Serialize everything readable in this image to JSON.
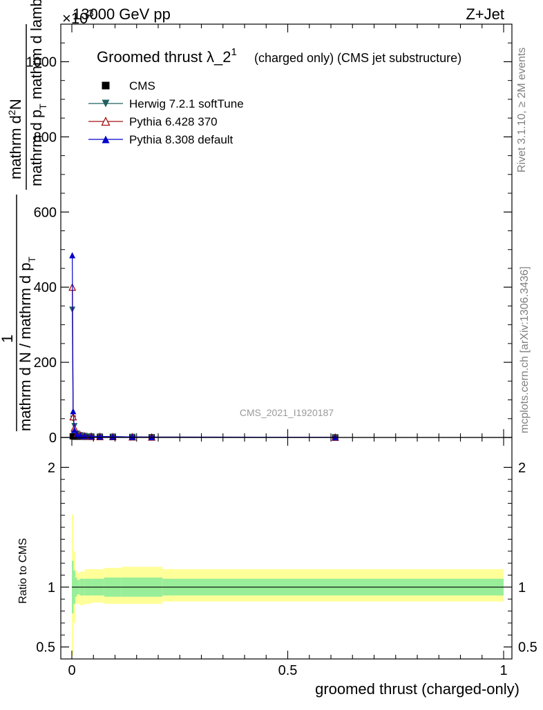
{
  "header": {
    "energy": "13000 GeV pp",
    "process": "Z+Jet",
    "exponent": "×10",
    "exponent_power": "3"
  },
  "side_text": {
    "rivet": "Rivet 3.1.10, ≥ 2M events",
    "mcplots": "mcplots.cern.ch [arXiv:1306.3436]"
  },
  "watermark": "CMS_2021_I1920187",
  "plot_title": {
    "main": "Groomed thrust λ_2",
    "sup": "1",
    "sub": "(charged only) (CMS jet substructure)"
  },
  "ylabel": {
    "numerator": "mathrm d²N",
    "numerator_parts": [
      "mathrm d",
      "N"
    ],
    "denominator_line1": "mathrm d p_T mathrm d lambda",
    "denominator_line1_parts": [
      "mathrm d p",
      "T",
      " mathrm d lambda"
    ],
    "lhs_one": "1",
    "lhs_denominator": "mathrm d N / mathrm d p_T",
    "lhs_denominator_parts": [
      "mathrm d N / mathrm d p",
      "T"
    ]
  },
  "xlabel": "groomed thrust (charged-only)",
  "ratio_ylabel": "Ratio to CMS",
  "legend": [
    {
      "name": "CMS",
      "marker": "square",
      "color": "#000000"
    },
    {
      "name": "Herwig 7.2.1 softTune",
      "marker": "triangle-down",
      "color": "#1f5f5f"
    },
    {
      "name": "Pythia 6.428 370",
      "marker": "triangle-open",
      "color": "#a01010"
    },
    {
      "name": "Pythia 8.308 default",
      "marker": "triangle-up",
      "color": "#0000cc"
    }
  ],
  "chart_data": {
    "type": "line",
    "x_range": [
      0,
      1
    ],
    "main_y_range": [
      0,
      1100
    ],
    "main_y_scale_note": "×10³",
    "main_y_ticks": [
      0,
      200,
      400,
      600,
      800,
      1000
    ],
    "main_y_ticklabels": [
      "0",
      "200",
      "400",
      "600",
      "800",
      "1000"
    ],
    "x_ticks": [
      0,
      0.5,
      1
    ],
    "x_ticklabels": [
      "0",
      "0.5",
      "1"
    ],
    "ratio_y_range": [
      0.4,
      2.25
    ],
    "ratio_y_ticks": [
      0.5,
      1,
      2
    ],
    "ratio_y_ticklabels": [
      "0.5",
      "1",
      "2"
    ],
    "series": [
      {
        "name": "CMS",
        "x": [
          0.002,
          0.006,
          0.012,
          0.02,
          0.03,
          0.045,
          0.065,
          0.095,
          0.14,
          0.185,
          0.61
        ],
        "y": [
          3,
          2,
          2.5,
          2,
          1.8,
          1.5,
          1.2,
          1.0,
          0.8,
          0.5,
          0.3
        ]
      },
      {
        "name": "Herwig 7.2.1 softTune",
        "x": [
          0.001,
          0.003,
          0.006,
          0.012,
          0.02,
          0.03,
          0.045,
          0.065,
          0.095,
          0.14,
          0.185,
          0.61
        ],
        "y": [
          340,
          50,
          30,
          10,
          6,
          4,
          3,
          2.5,
          2,
          1.5,
          1,
          0.5
        ]
      },
      {
        "name": "Pythia 6.428 370",
        "x": [
          0.001,
          0.003,
          0.006,
          0.012,
          0.02,
          0.03,
          0.045,
          0.065,
          0.095,
          0.14,
          0.185,
          0.61
        ],
        "y": [
          400,
          55,
          25,
          9,
          6,
          4,
          3,
          2.5,
          2,
          1.5,
          1,
          0.5
        ]
      },
      {
        "name": "Pythia 8.308 default",
        "x": [
          0.001,
          0.003,
          0.006,
          0.012,
          0.02,
          0.03,
          0.045,
          0.065,
          0.095,
          0.14,
          0.185,
          0.61
        ],
        "y": [
          485,
          70,
          20,
          8,
          5,
          4,
          3,
          2.5,
          2,
          1.5,
          1,
          0.5
        ]
      }
    ],
    "ratio_bands": {
      "x_edges": [
        0.0,
        0.004,
        0.008,
        0.012,
        0.018,
        0.03,
        0.045,
        0.075,
        0.115,
        0.21,
        1.0
      ],
      "inner_lo": [
        0.78,
        0.86,
        0.92,
        0.94,
        0.93,
        0.93,
        0.93,
        0.92,
        0.92,
        0.93
      ],
      "inner_hi": [
        1.22,
        1.14,
        1.08,
        1.06,
        1.07,
        1.07,
        1.07,
        1.08,
        1.08,
        1.07
      ],
      "outer_lo": [
        0.43,
        0.7,
        0.86,
        0.86,
        0.85,
        0.86,
        0.87,
        0.86,
        0.86,
        0.88
      ],
      "outer_hi": [
        1.61,
        1.3,
        1.14,
        1.12,
        1.13,
        1.15,
        1.15,
        1.16,
        1.17,
        1.15
      ]
    },
    "ratio_reference": 1
  }
}
